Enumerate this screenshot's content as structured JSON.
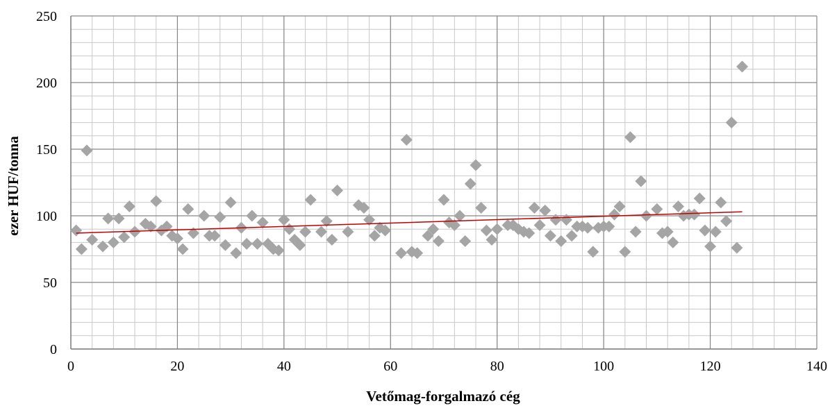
{
  "chart_data": {
    "type": "scatter",
    "title": "",
    "xlabel": "Vetőmag-forgalmazó cég",
    "ylabel": "ezer HUF/tonna",
    "xlim": [
      0,
      140
    ],
    "ylim": [
      0,
      250
    ],
    "xticks": [
      0,
      20,
      40,
      60,
      80,
      100,
      120,
      140
    ],
    "yticks": [
      0,
      50,
      100,
      150,
      200,
      250
    ],
    "x_minor_step": 4,
    "y_minor_step": 10,
    "grid": true,
    "legend": "none",
    "colors": {
      "points": "#a5a5a5",
      "trend": "#c00000",
      "major_grid": "#868686",
      "minor_grid": "#c8c8c8"
    },
    "series": [
      {
        "marker": "diamond",
        "points": [
          [
            1,
            89
          ],
          [
            2,
            75
          ],
          [
            3,
            149
          ],
          [
            4,
            82
          ],
          [
            6,
            77
          ],
          [
            7,
            98
          ],
          [
            8,
            80
          ],
          [
            9,
            98
          ],
          [
            10,
            84
          ],
          [
            11,
            107
          ],
          [
            12,
            88
          ],
          [
            14,
            94
          ],
          [
            15,
            92
          ],
          [
            16,
            111
          ],
          [
            17,
            89
          ],
          [
            18,
            92
          ],
          [
            19,
            85
          ],
          [
            20,
            83
          ],
          [
            21,
            75
          ],
          [
            22,
            105
          ],
          [
            23,
            87
          ],
          [
            25,
            100
          ],
          [
            26,
            85
          ],
          [
            27,
            85
          ],
          [
            28,
            99
          ],
          [
            29,
            78
          ],
          [
            30,
            110
          ],
          [
            31,
            72
          ],
          [
            32,
            91
          ],
          [
            33,
            79
          ],
          [
            34,
            100
          ],
          [
            35,
            79
          ],
          [
            36,
            95
          ],
          [
            37,
            79
          ],
          [
            38,
            75
          ],
          [
            39,
            74
          ],
          [
            40,
            97
          ],
          [
            41,
            90
          ],
          [
            42,
            82
          ],
          [
            43,
            78
          ],
          [
            44,
            88
          ],
          [
            45,
            112
          ],
          [
            47,
            88
          ],
          [
            48,
            96
          ],
          [
            49,
            82
          ],
          [
            50,
            119
          ],
          [
            52,
            88
          ],
          [
            54,
            108
          ],
          [
            55,
            106
          ],
          [
            56,
            97
          ],
          [
            57,
            85
          ],
          [
            58,
            91
          ],
          [
            59,
            89
          ],
          [
            62,
            72
          ],
          [
            63,
            157
          ],
          [
            64,
            73
          ],
          [
            65,
            72
          ],
          [
            67,
            85
          ],
          [
            68,
            90
          ],
          [
            69,
            81
          ],
          [
            70,
            112
          ],
          [
            71,
            95
          ],
          [
            72,
            93
          ],
          [
            73,
            100
          ],
          [
            74,
            81
          ],
          [
            75,
            124
          ],
          [
            76,
            138
          ],
          [
            77,
            106
          ],
          [
            78,
            89
          ],
          [
            79,
            82
          ],
          [
            80,
            90
          ],
          [
            82,
            93
          ],
          [
            83,
            93
          ],
          [
            84,
            90
          ],
          [
            85,
            88
          ],
          [
            86,
            87
          ],
          [
            87,
            106
          ],
          [
            88,
            93
          ],
          [
            89,
            104
          ],
          [
            90,
            85
          ],
          [
            91,
            97
          ],
          [
            92,
            81
          ],
          [
            93,
            97
          ],
          [
            94,
            85
          ],
          [
            95,
            92
          ],
          [
            96,
            92
          ],
          [
            97,
            91
          ],
          [
            98,
            73
          ],
          [
            99,
            91
          ],
          [
            100,
            92
          ],
          [
            101,
            92
          ],
          [
            102,
            101
          ],
          [
            103,
            107
          ],
          [
            104,
            73
          ],
          [
            105,
            159
          ],
          [
            106,
            88
          ],
          [
            107,
            126
          ],
          [
            108,
            100
          ],
          [
            110,
            105
          ],
          [
            111,
            87
          ],
          [
            112,
            88
          ],
          [
            113,
            80
          ],
          [
            114,
            107
          ],
          [
            115,
            100
          ],
          [
            116,
            101
          ],
          [
            117,
            101
          ],
          [
            118,
            113
          ],
          [
            119,
            89
          ],
          [
            120,
            77
          ],
          [
            121,
            88
          ],
          [
            122,
            110
          ],
          [
            123,
            96
          ],
          [
            124,
            170
          ],
          [
            125,
            76
          ],
          [
            126,
            212
          ]
        ]
      }
    ],
    "trendline": {
      "type": "linear",
      "from": [
        1,
        87
      ],
      "to": [
        126,
        103
      ]
    }
  }
}
